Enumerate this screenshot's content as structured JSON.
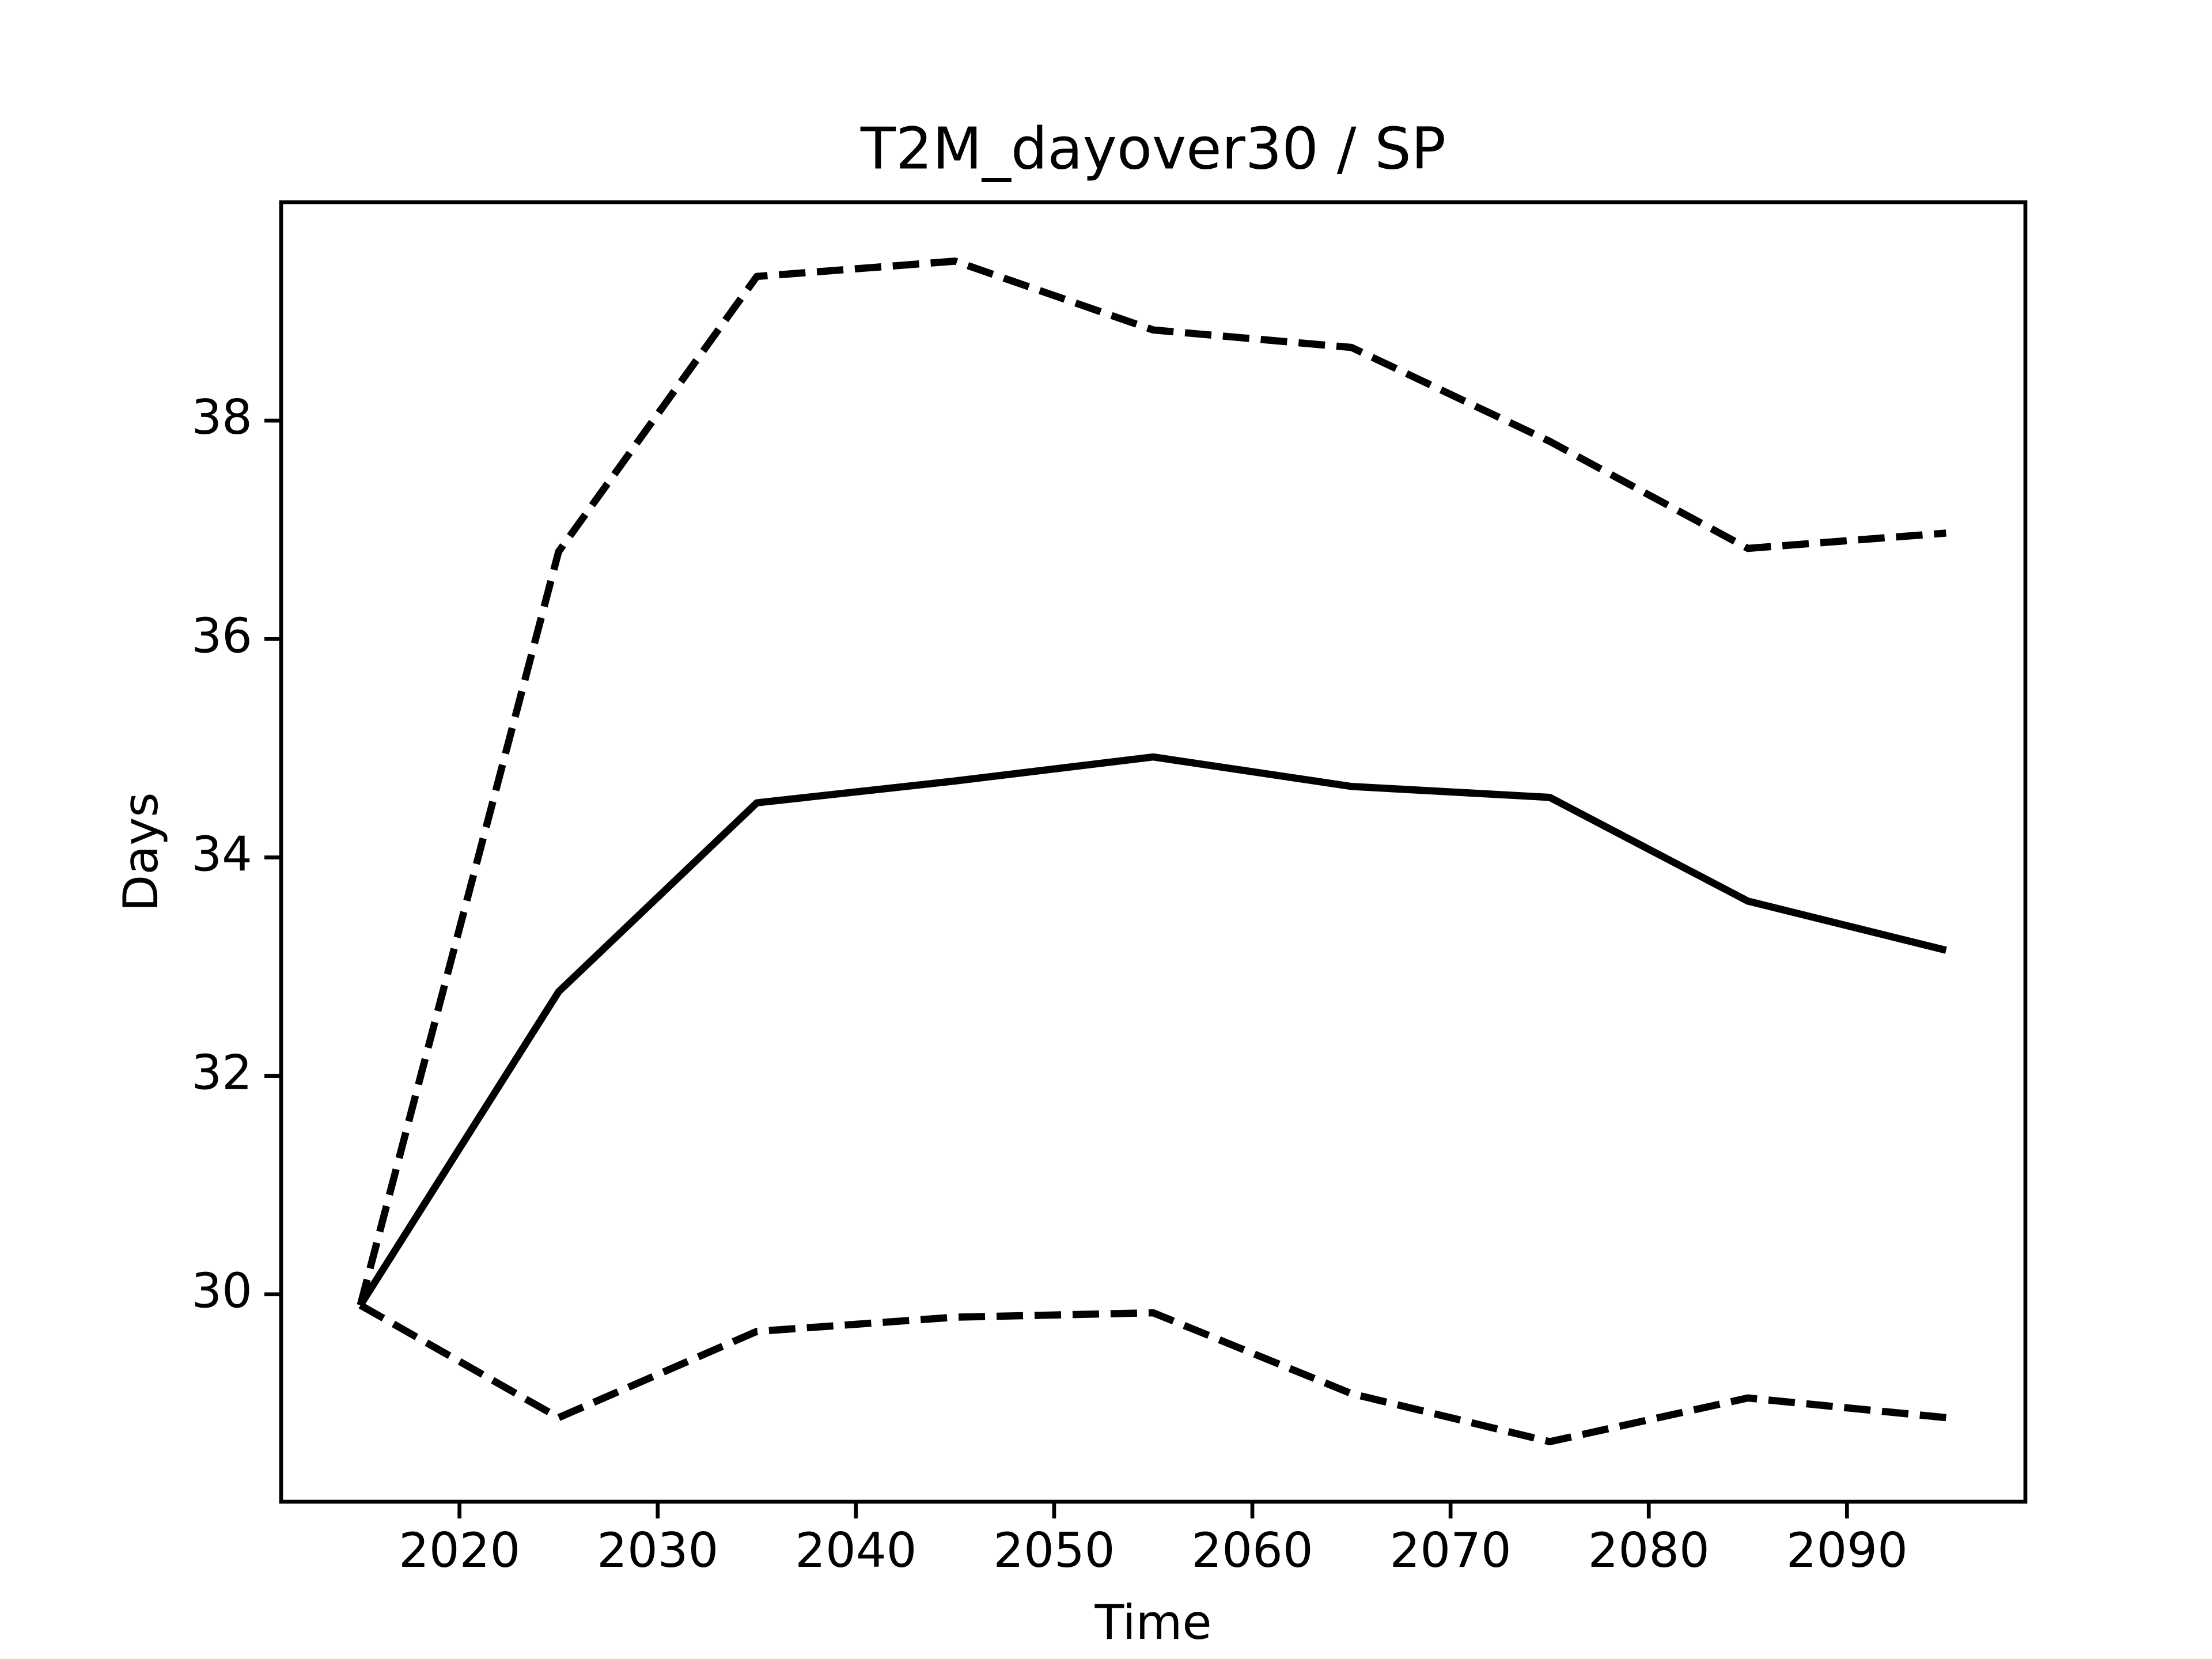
{
  "chart_data": {
    "type": "line",
    "title": "T2M_dayover30 / SP",
    "xlabel": "Time",
    "ylabel": "Days",
    "x": [
      2015,
      2025,
      2035,
      2045,
      2055,
      2065,
      2075,
      2085,
      2095
    ],
    "series": [
      {
        "color": "#000000",
        "linestyle": "solid",
        "values": [
          29.9,
          32.77,
          34.5,
          34.7,
          34.92,
          34.65,
          34.55,
          33.6,
          33.15
        ]
      },
      {
        "color": "#000000",
        "linestyle": "dashed",
        "values": [
          29.9,
          36.8,
          39.32,
          39.46,
          38.83,
          38.67,
          37.81,
          36.83,
          36.97
        ]
      },
      {
        "color": "#000000",
        "linestyle": "dashed",
        "values": [
          29.9,
          28.87,
          29.66,
          29.79,
          29.83,
          29.09,
          28.65,
          29.05,
          28.87
        ]
      }
    ],
    "xlim": [
      2011,
      2099
    ],
    "xticks": [
      2020,
      2030,
      2040,
      2050,
      2060,
      2070,
      2080,
      2090
    ],
    "ylim": [
      28.1,
      40.0
    ],
    "yticks": [
      30,
      32,
      34,
      36,
      38
    ],
    "grid": false
  }
}
